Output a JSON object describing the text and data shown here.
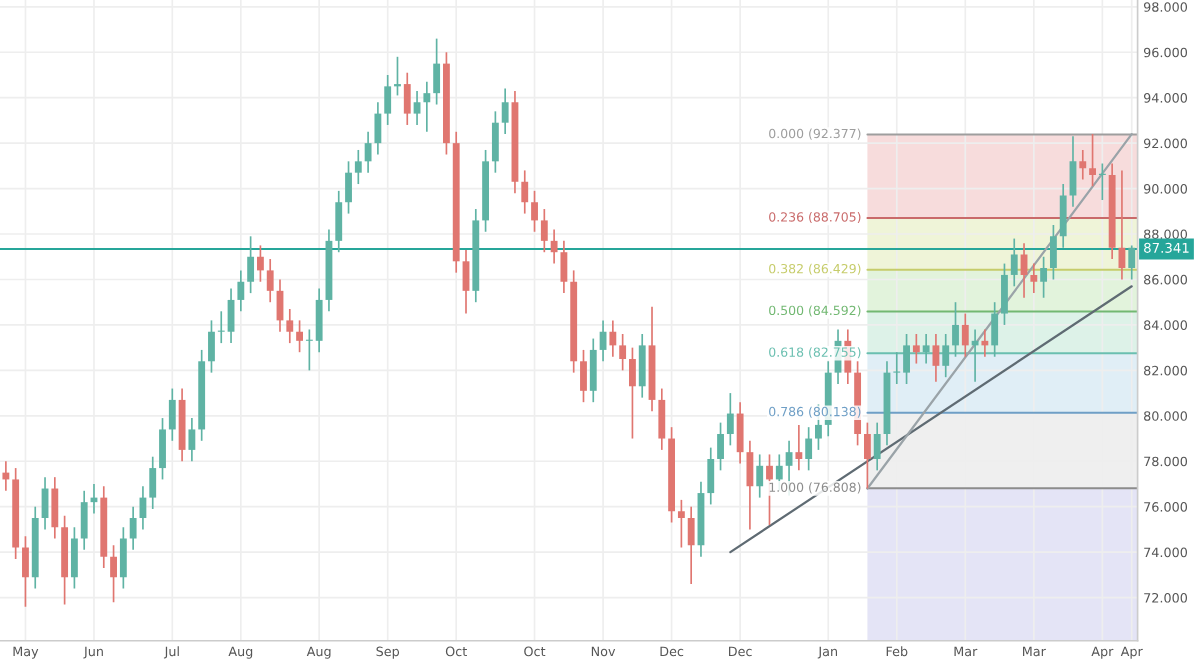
{
  "chart_data": {
    "type": "candlestick",
    "categories": [
      null,
      null,
      "May",
      null,
      null,
      null,
      null,
      null,
      null,
      "Jun",
      null,
      null,
      null,
      null,
      null,
      null,
      null,
      "Jul",
      null,
      null,
      null,
      null,
      null,
      null,
      "Aug",
      null,
      null,
      null,
      null,
      null,
      null,
      null,
      "Aug",
      null,
      null,
      null,
      null,
      null,
      null,
      "Sep",
      null,
      null,
      null,
      null,
      null,
      null,
      "Oct",
      null,
      null,
      null,
      null,
      null,
      null,
      null,
      "Oct",
      null,
      null,
      null,
      null,
      null,
      null,
      "Nov",
      null,
      null,
      null,
      null,
      null,
      null,
      "Dec",
      null,
      null,
      null,
      null,
      null,
      null,
      "Dec",
      null,
      null,
      null,
      null,
      null,
      null,
      null,
      null,
      "Jan",
      null,
      null,
      null,
      null,
      null,
      null,
      "Feb",
      null,
      null,
      null,
      null,
      null,
      null,
      "Mar",
      null,
      null,
      null,
      null,
      null,
      null,
      "Mar",
      null,
      null,
      null,
      null,
      null,
      null,
      "Apr",
      null,
      null,
      "Apr"
    ],
    "ohlc": [
      [
        77.5,
        78.0,
        76.7,
        77.2
      ],
      [
        77.2,
        77.7,
        73.7,
        74.2
      ],
      [
        74.2,
        74.7,
        71.6,
        72.9
      ],
      [
        72.9,
        76.0,
        72.4,
        75.5
      ],
      [
        75.5,
        77.3,
        75.0,
        76.8
      ],
      [
        76.8,
        77.3,
        74.6,
        75.1
      ],
      [
        75.1,
        75.6,
        71.7,
        72.9
      ],
      [
        72.9,
        75.1,
        72.4,
        74.6
      ],
      [
        74.6,
        76.7,
        74.1,
        76.2
      ],
      [
        76.2,
        77.0,
        75.7,
        76.4
      ],
      [
        76.4,
        76.9,
        73.3,
        73.8
      ],
      [
        73.8,
        74.3,
        71.8,
        72.9
      ],
      [
        72.9,
        75.1,
        72.4,
        74.6
      ],
      [
        74.6,
        76.0,
        74.1,
        75.5
      ],
      [
        75.5,
        76.9,
        75.0,
        76.4
      ],
      [
        76.4,
        78.2,
        75.9,
        77.7
      ],
      [
        77.7,
        79.9,
        77.2,
        79.4
      ],
      [
        79.4,
        81.2,
        78.9,
        80.7
      ],
      [
        80.7,
        81.2,
        78.0,
        78.5
      ],
      [
        78.5,
        79.9,
        78.0,
        79.4
      ],
      [
        79.4,
        82.9,
        78.9,
        82.4
      ],
      [
        82.4,
        84.2,
        81.9,
        83.7
      ],
      [
        83.7,
        84.6,
        83.2,
        83.7
      ],
      [
        83.7,
        85.6,
        83.2,
        85.1
      ],
      [
        85.1,
        86.4,
        84.6,
        85.9
      ],
      [
        85.9,
        87.9,
        85.4,
        87.0
      ],
      [
        87.0,
        87.5,
        85.9,
        86.4
      ],
      [
        86.4,
        86.9,
        85.0,
        85.5
      ],
      [
        85.5,
        86.0,
        83.7,
        84.2
      ],
      [
        84.2,
        84.7,
        83.2,
        83.7
      ],
      [
        83.7,
        84.2,
        82.8,
        83.3
      ],
      [
        83.3,
        83.8,
        82.0,
        83.3
      ],
      [
        83.3,
        85.6,
        82.8,
        85.1
      ],
      [
        85.1,
        88.2,
        84.6,
        87.7
      ],
      [
        87.7,
        89.9,
        87.2,
        89.4
      ],
      [
        89.4,
        91.2,
        88.9,
        90.7
      ],
      [
        90.7,
        91.7,
        90.2,
        91.2
      ],
      [
        91.2,
        92.5,
        90.7,
        92.0
      ],
      [
        92.0,
        93.8,
        91.5,
        93.3
      ],
      [
        93.3,
        95.0,
        92.8,
        94.5
      ],
      [
        94.5,
        95.8,
        94.1,
        94.6
      ],
      [
        94.6,
        95.1,
        92.8,
        93.3
      ],
      [
        93.3,
        94.3,
        92.8,
        93.8
      ],
      [
        93.8,
        94.7,
        92.5,
        94.2
      ],
      [
        94.2,
        96.6,
        93.7,
        95.5
      ],
      [
        95.5,
        96.0,
        91.5,
        92.0
      ],
      [
        92.0,
        92.5,
        86.3,
        86.8
      ],
      [
        86.8,
        87.3,
        84.5,
        85.5
      ],
      [
        85.5,
        89.1,
        85.0,
        88.6
      ],
      [
        88.6,
        91.7,
        88.1,
        91.2
      ],
      [
        91.2,
        93.4,
        90.7,
        92.9
      ],
      [
        92.9,
        94.4,
        92.4,
        93.8
      ],
      [
        93.8,
        94.3,
        89.8,
        90.3
      ],
      [
        90.3,
        90.8,
        88.9,
        89.4
      ],
      [
        89.4,
        89.9,
        88.1,
        88.6
      ],
      [
        88.6,
        89.1,
        87.2,
        87.7
      ],
      [
        87.7,
        88.2,
        86.7,
        87.2
      ],
      [
        87.2,
        87.7,
        85.4,
        85.9
      ],
      [
        85.9,
        86.4,
        81.9,
        82.4
      ],
      [
        82.4,
        82.9,
        80.6,
        81.1
      ],
      [
        81.1,
        83.4,
        80.6,
        82.9
      ],
      [
        82.9,
        84.2,
        82.4,
        83.7
      ],
      [
        83.7,
        84.2,
        82.6,
        83.1
      ],
      [
        83.1,
        83.6,
        82.0,
        82.5
      ],
      [
        82.5,
        83.0,
        79.0,
        81.3
      ],
      [
        81.3,
        83.6,
        80.8,
        83.1
      ],
      [
        83.1,
        84.8,
        80.2,
        80.7
      ],
      [
        80.7,
        81.2,
        78.5,
        79.0
      ],
      [
        79.0,
        79.5,
        75.3,
        75.8
      ],
      [
        75.8,
        76.3,
        74.2,
        75.5
      ],
      [
        75.5,
        76.0,
        72.6,
        74.3
      ],
      [
        74.3,
        77.1,
        73.8,
        76.6
      ],
      [
        76.6,
        78.6,
        76.1,
        78.1
      ],
      [
        78.1,
        79.7,
        77.6,
        79.2
      ],
      [
        79.2,
        81.0,
        78.7,
        80.1
      ],
      [
        80.1,
        80.6,
        77.9,
        78.4
      ],
      [
        78.4,
        78.9,
        75.0,
        76.9
      ],
      [
        76.9,
        78.3,
        76.4,
        77.8
      ],
      [
        77.8,
        78.3,
        75.2,
        77.2
      ],
      [
        77.2,
        78.3,
        76.7,
        77.8
      ],
      [
        77.8,
        78.9,
        76.5,
        78.4
      ],
      [
        78.4,
        79.6,
        77.6,
        78.1
      ],
      [
        78.1,
        79.5,
        77.6,
        79.0
      ],
      [
        79.0,
        80.5,
        78.5,
        79.6
      ],
      [
        79.6,
        82.4,
        79.1,
        81.9
      ],
      [
        81.9,
        83.8,
        81.4,
        83.3
      ],
      [
        83.3,
        83.8,
        81.4,
        81.9
      ],
      [
        81.9,
        82.4,
        78.7,
        79.2
      ],
      [
        79.2,
        79.7,
        76.8,
        78.1
      ],
      [
        78.1,
        79.7,
        77.6,
        79.2
      ],
      [
        79.2,
        82.4,
        78.7,
        81.9
      ],
      [
        81.9,
        82.8,
        81.4,
        81.9
      ],
      [
        81.9,
        83.6,
        81.4,
        83.1
      ],
      [
        83.1,
        83.6,
        82.3,
        82.8
      ],
      [
        82.8,
        83.6,
        82.3,
        83.1
      ],
      [
        83.1,
        83.6,
        81.5,
        82.2
      ],
      [
        82.2,
        83.6,
        81.7,
        83.1
      ],
      [
        83.1,
        85.0,
        82.6,
        84.0
      ],
      [
        84.0,
        84.5,
        82.6,
        83.1
      ],
      [
        83.1,
        83.8,
        81.5,
        83.3
      ],
      [
        83.3,
        83.8,
        82.6,
        83.1
      ],
      [
        83.1,
        85.0,
        82.6,
        84.5
      ],
      [
        84.5,
        86.7,
        84.0,
        86.2
      ],
      [
        86.2,
        87.8,
        85.7,
        87.1
      ],
      [
        87.1,
        87.6,
        85.2,
        86.2
      ],
      [
        86.2,
        86.7,
        85.4,
        85.9
      ],
      [
        85.9,
        87.0,
        85.2,
        86.5
      ],
      [
        86.5,
        88.4,
        86.0,
        87.9
      ],
      [
        87.9,
        90.2,
        87.4,
        89.7
      ],
      [
        89.7,
        92.3,
        89.2,
        91.2
      ],
      [
        91.2,
        91.7,
        90.4,
        90.9
      ],
      [
        90.9,
        92.4,
        90.1,
        90.6
      ],
      [
        90.6,
        91.1,
        89.5,
        90.6
      ],
      [
        90.6,
        91.1,
        86.9,
        87.4
      ],
      [
        87.4,
        90.8,
        86.0,
        86.5
      ],
      [
        86.5,
        87.5,
        86.0,
        87.4
      ]
    ],
    "series": [
      {
        "type": "line",
        "color": "#5f6b73",
        "values": [
          null,
          null,
          null,
          null,
          null,
          null,
          null,
          null,
          null,
          null,
          null,
          null,
          null,
          null,
          null,
          null,
          null,
          null,
          null,
          null,
          null,
          null,
          null,
          null,
          null,
          null,
          null,
          null,
          null,
          null,
          null,
          null,
          null,
          null,
          null,
          null,
          null,
          null,
          null,
          null,
          null,
          null,
          null,
          null,
          null,
          null,
          null,
          null,
          null,
          null,
          null,
          null,
          null,
          null,
          null,
          null,
          null,
          null,
          null,
          null,
          null,
          null,
          null,
          null,
          null,
          null,
          null,
          null,
          null,
          null,
          null,
          null,
          null,
          null,
          74.0,
          null,
          null,
          null,
          null,
          null,
          null,
          null,
          null,
          null,
          null,
          null,
          null,
          null,
          null,
          null,
          null,
          null,
          null,
          null,
          null,
          null,
          null,
          null,
          null,
          null,
          null,
          null,
          null,
          null,
          null,
          null,
          null,
          null,
          null,
          null,
          null,
          null,
          null,
          null,
          null,
          85.7
        ]
      },
      {
        "type": "line",
        "color": "#9aa3a8",
        "values": [
          null,
          null,
          null,
          null,
          null,
          null,
          null,
          null,
          null,
          null,
          null,
          null,
          null,
          null,
          null,
          null,
          null,
          null,
          null,
          null,
          null,
          null,
          null,
          null,
          null,
          null,
          null,
          null,
          null,
          null,
          null,
          null,
          null,
          null,
          null,
          null,
          null,
          null,
          null,
          null,
          null,
          null,
          null,
          null,
          null,
          null,
          null,
          null,
          null,
          null,
          null,
          null,
          null,
          null,
          null,
          null,
          null,
          null,
          null,
          null,
          null,
          null,
          null,
          null,
          null,
          null,
          null,
          null,
          null,
          null,
          null,
          null,
          null,
          null,
          null,
          null,
          null,
          null,
          null,
          null,
          null,
          null,
          null,
          null,
          null,
          null,
          null,
          null,
          76.8,
          null,
          null,
          null,
          null,
          null,
          null,
          null,
          null,
          null,
          null,
          null,
          null,
          null,
          null,
          null,
          null,
          null,
          null,
          null,
          null,
          null,
          null,
          null,
          null,
          null,
          null,
          92.4
        ]
      }
    ],
    "ylim": [
      70.1,
      98.3
    ],
    "yticks": [
      {
        "value": 72,
        "label": "72.000"
      },
      {
        "value": 74,
        "label": "74.000"
      },
      {
        "value": 76,
        "label": "76.000"
      },
      {
        "value": 78,
        "label": "78.000"
      },
      {
        "value": 80,
        "label": "80.000"
      },
      {
        "value": 82,
        "label": "82.000"
      },
      {
        "value": 84,
        "label": "84.000"
      },
      {
        "value": 86,
        "label": "86.000"
      },
      {
        "value": 88,
        "label": "88.000"
      },
      {
        "value": 90,
        "label": "90.000"
      },
      {
        "value": 92,
        "label": "92.000"
      },
      {
        "value": 94,
        "label": "94.000"
      },
      {
        "value": 96,
        "label": "96.000"
      },
      {
        "value": 98,
        "label": "98.000"
      }
    ],
    "grid": true,
    "ref_lines": [
      {
        "axis": "y",
        "value": 87.341,
        "label": "87.341",
        "color": "#26a69a"
      },
      {
        "axis": "y",
        "value": 92.377,
        "label": "0.000 (92.377)",
        "color": "#9e9e9e"
      },
      {
        "axis": "y",
        "value": 88.705,
        "label": "0.236 (88.705)",
        "color": "#c96a6a"
      },
      {
        "axis": "y",
        "value": 86.429,
        "label": "0.382 (86.429)",
        "color": "#c6cc6a"
      },
      {
        "axis": "y",
        "value": 84.592,
        "label": "0.500 (84.592)",
        "color": "#72b872"
      },
      {
        "axis": "y",
        "value": 82.755,
        "label": "0.618 (82.755)",
        "color": "#6abfb0"
      },
      {
        "axis": "y",
        "value": 80.138,
        "label": "0.786 (80.138)",
        "color": "#6f9fc6"
      },
      {
        "axis": "y",
        "value": 76.808,
        "label": "1.000 (76.808)",
        "color": "#8c8c8c"
      }
    ],
    "bands": [
      {
        "axis": "y",
        "from": 88.705,
        "to": 92.377,
        "color": "#f7dcdc"
      },
      {
        "axis": "y",
        "from": 86.429,
        "to": 88.705,
        "color": "#eff4d8"
      },
      {
        "axis": "y",
        "from": 84.592,
        "to": 86.429,
        "color": "#e2f3dc"
      },
      {
        "axis": "y",
        "from": 82.755,
        "to": 84.592,
        "color": "#ddf2e8"
      },
      {
        "axis": "y",
        "from": 80.138,
        "to": 82.755,
        "color": "#e0eef6"
      },
      {
        "axis": "y",
        "from": 76.808,
        "to": 80.138,
        "color": "#efefef"
      },
      {
        "axis": "y",
        "from": 70.1,
        "to": 76.808,
        "color": "#e4e4f6"
      }
    ]
  }
}
